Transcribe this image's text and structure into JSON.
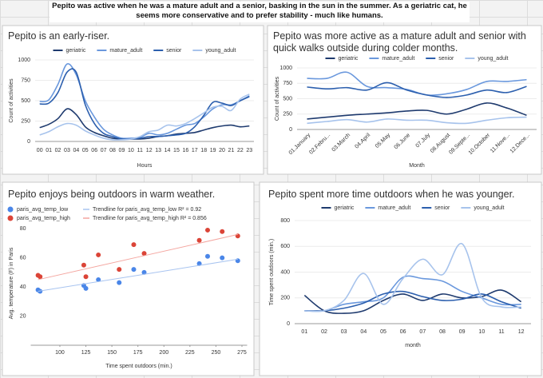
{
  "banner": "Pepito was active when he was a mature adult and a senior, basking in the sun in the summer. As a geriatric cat, he seems more conservative and to prefer stability - much like humans.",
  "chart_data": [
    {
      "type": "line",
      "title": "Pepito is an early-riser.",
      "x_label": "Hours",
      "y_label": "Count of activities",
      "legend": "top",
      "grid": true,
      "categories": [
        "00",
        "01",
        "02",
        "03",
        "04",
        "05",
        "06",
        "07",
        "08",
        "09",
        "10",
        "11",
        "12",
        "13",
        "14",
        "15",
        "16",
        "17",
        "18",
        "19",
        "20",
        "21",
        "22",
        "23"
      ],
      "ylim": [
        0,
        1000
      ],
      "yticks": [
        0,
        250,
        500,
        750,
        1000
      ],
      "series": [
        {
          "name": "geriatric",
          "color": "#1e3a6e",
          "values": [
            170,
            210,
            280,
            400,
            330,
            180,
            110,
            70,
            40,
            30,
            30,
            30,
            40,
            60,
            70,
            90,
            100,
            110,
            140,
            170,
            190,
            200,
            180,
            190
          ]
        },
        {
          "name": "mature_adult",
          "color": "#6a98dd",
          "values": [
            490,
            510,
            700,
            950,
            820,
            500,
            300,
            150,
            80,
            40,
            40,
            50,
            100,
            80,
            100,
            150,
            200,
            220,
            300,
            400,
            450,
            450,
            500,
            560
          ]
        },
        {
          "name": "senior",
          "color": "#2c5fae",
          "values": [
            460,
            470,
            600,
            850,
            850,
            450,
            220,
            100,
            60,
            30,
            30,
            40,
            60,
            60,
            70,
            80,
            100,
            180,
            320,
            480,
            470,
            440,
            500,
            550
          ]
        },
        {
          "name": "young_adult",
          "color": "#a7c3ec",
          "values": [
            80,
            120,
            180,
            220,
            200,
            130,
            80,
            40,
            20,
            20,
            30,
            60,
            120,
            140,
            200,
            190,
            220,
            280,
            350,
            420,
            430,
            380,
            520,
            580
          ]
        }
      ]
    },
    {
      "type": "line",
      "title": "Pepito was more active as a mature adult and senior with quick walks outside during colder months.",
      "x_label": "Month",
      "y_label": "Count of activities",
      "legend": "top",
      "grid": true,
      "rotate_labels": true,
      "categories": [
        "01.January",
        "02.Febru...",
        "03.March",
        "04.April",
        "05.May",
        "06.June",
        "07.July",
        "08.August",
        "09.Septe...",
        "10.October",
        "11.Nove...",
        "12.Dece..."
      ],
      "ylim": [
        0,
        1000
      ],
      "yticks": [
        0,
        250,
        500,
        750,
        1000
      ],
      "series": [
        {
          "name": "geriatric",
          "color": "#1e3a6e",
          "values": [
            170,
            200,
            230,
            250,
            270,
            300,
            310,
            250,
            330,
            430,
            350,
            230
          ]
        },
        {
          "name": "mature_adult",
          "color": "#6a98dd",
          "values": [
            830,
            830,
            930,
            700,
            680,
            650,
            560,
            580,
            650,
            780,
            780,
            810
          ]
        },
        {
          "name": "senior",
          "color": "#2c5fae",
          "values": [
            690,
            660,
            680,
            640,
            760,
            640,
            560,
            520,
            560,
            640,
            600,
            700
          ]
        },
        {
          "name": "young_adult",
          "color": "#a7c3ec",
          "values": [
            100,
            130,
            160,
            120,
            170,
            150,
            150,
            110,
            100,
            150,
            190,
            200
          ]
        }
      ]
    },
    {
      "type": "scatter",
      "title": "Pepito enjoys being outdoors in warm weather.",
      "x_label": "Time spent outdoors (min.)",
      "y_label": "Avg. temperature (F) in Paris",
      "legend": "top",
      "grid": false,
      "xlim": [
        72,
        280
      ],
      "xticks": [
        100,
        125,
        150,
        175,
        200,
        225,
        250,
        275
      ],
      "ylim": [
        0,
        85
      ],
      "yticks": [
        20,
        40,
        60,
        80
      ],
      "series": [
        {
          "name": "paris_avg_temp_low",
          "color": "#4a86e8",
          "x": [
            79,
            81,
            123,
            125,
            137,
            157,
            171,
            181,
            234,
            242,
            256,
            271
          ],
          "values": [
            38,
            37,
            41,
            39,
            45,
            43,
            52,
            50,
            56,
            61,
            60,
            58
          ]
        },
        {
          "name": "Trendline for paris_avg_temp_low R² = 0.92",
          "color": "#a8c4f0",
          "style": "trendline",
          "x": [
            79,
            271
          ],
          "values": [
            37,
            59
          ]
        },
        {
          "name": "paris_avg_temp_high",
          "color": "#db4437",
          "x": [
            79,
            81,
            123,
            125,
            137,
            157,
            171,
            181,
            234,
            242,
            256,
            271
          ],
          "values": [
            48,
            47,
            55,
            47,
            62,
            52,
            69,
            63,
            72,
            79,
            78,
            75
          ]
        },
        {
          "name": "Trendline for paris_avg_temp_high R² = 0.856",
          "color": "#f4a6a0",
          "style": "trendline",
          "x": [
            79,
            271
          ],
          "values": [
            45,
            76
          ]
        }
      ]
    },
    {
      "type": "line",
      "title": "Pepito spent more time outdoors when he was younger.",
      "x_label": "month",
      "y_label": "Time spent outdoors (min.)",
      "legend": "top",
      "grid": true,
      "categories": [
        "01",
        "02",
        "03",
        "04",
        "05",
        "06",
        "07",
        "08",
        "09",
        "10",
        "11",
        "12"
      ],
      "ylim": [
        0,
        800
      ],
      "yticks": [
        0,
        200,
        400,
        600,
        800
      ],
      "series": [
        {
          "name": "geriatric",
          "color": "#1e3a6e",
          "values": [
            220,
            100,
            80,
            100,
            180,
            230,
            180,
            230,
            200,
            210,
            260,
            170
          ]
        },
        {
          "name": "mature_adult",
          "color": "#6a98dd",
          "values": [
            100,
            100,
            150,
            170,
            200,
            360,
            350,
            330,
            250,
            200,
            150,
            150
          ]
        },
        {
          "name": "senior",
          "color": "#2c5fae",
          "values": [
            100,
            100,
            120,
            160,
            230,
            250,
            210,
            180,
            190,
            230,
            170,
            120
          ]
        },
        {
          "name": "young_adult",
          "color": "#a7c3ec",
          "values": [
            100,
            100,
            180,
            390,
            150,
            350,
            500,
            380,
            620,
            200,
            130,
            130
          ]
        }
      ]
    }
  ]
}
